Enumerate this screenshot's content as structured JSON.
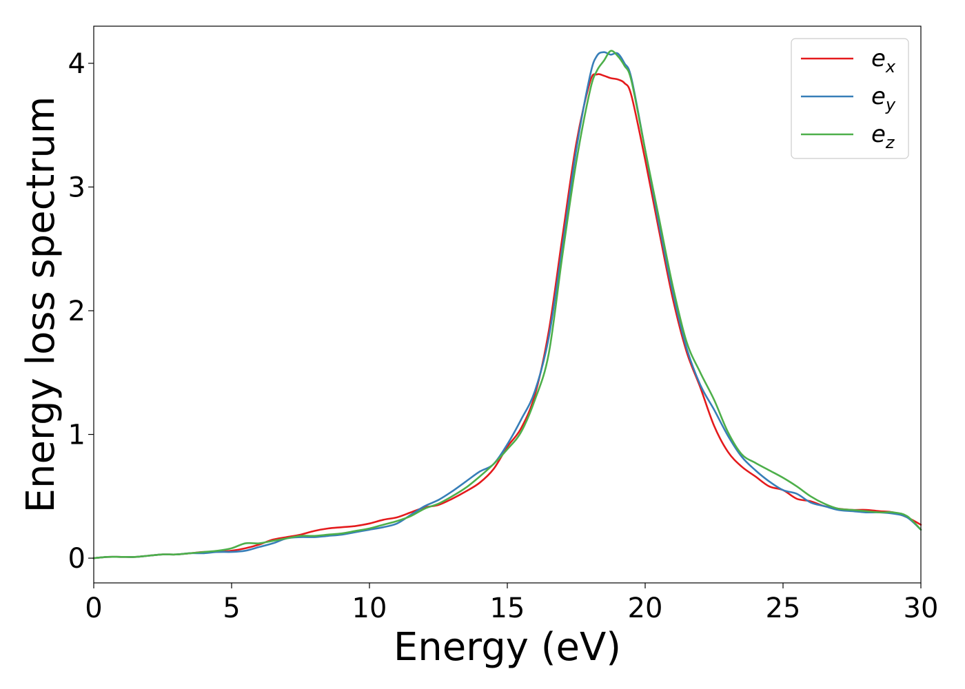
{
  "chart_data": {
    "type": "line",
    "title": "",
    "xlabel": "Energy (eV)",
    "ylabel": "Energy loss spectrum",
    "xlim": [
      0,
      30
    ],
    "ylim": [
      -0.2,
      4.3
    ],
    "xticks": [
      0,
      5,
      10,
      15,
      20,
      25,
      30
    ],
    "yticks": [
      0,
      1,
      2,
      3,
      4
    ],
    "grid": false,
    "legend_position": "top-right",
    "series": [
      {
        "name": "e_x",
        "legend_main": "e",
        "legend_sub": "x",
        "color": "#e41a1c",
        "x": [
          0,
          0.5,
          1,
          1.5,
          2,
          2.5,
          3,
          3.5,
          4,
          4.5,
          5,
          5.5,
          6,
          6.5,
          7,
          7.5,
          8,
          8.5,
          9,
          9.5,
          10,
          10.5,
          11,
          11.5,
          12,
          12.5,
          13,
          13.5,
          14,
          14.5,
          15,
          15.5,
          16,
          16.5,
          17,
          17.5,
          18,
          18.25,
          18.5,
          18.75,
          19,
          19.25,
          19.5,
          20,
          20.5,
          21,
          21.5,
          22,
          22.5,
          23,
          23.5,
          24,
          24.5,
          25,
          25.5,
          26,
          26.5,
          27,
          27.5,
          28,
          28.5,
          29,
          29.5,
          30
        ],
        "y": [
          0.0,
          0.01,
          0.01,
          0.01,
          0.02,
          0.03,
          0.03,
          0.04,
          0.05,
          0.05,
          0.06,
          0.08,
          0.11,
          0.15,
          0.17,
          0.19,
          0.22,
          0.24,
          0.25,
          0.26,
          0.28,
          0.31,
          0.33,
          0.37,
          0.41,
          0.43,
          0.48,
          0.54,
          0.61,
          0.72,
          0.9,
          1.05,
          1.32,
          1.83,
          2.6,
          3.35,
          3.85,
          3.91,
          3.9,
          3.88,
          3.87,
          3.84,
          3.74,
          3.22,
          2.65,
          2.1,
          1.67,
          1.38,
          1.07,
          0.86,
          0.74,
          0.66,
          0.58,
          0.55,
          0.48,
          0.46,
          0.42,
          0.4,
          0.39,
          0.39,
          0.38,
          0.37,
          0.33,
          0.27
        ]
      },
      {
        "name": "e_y",
        "legend_main": "e",
        "legend_sub": "y",
        "color": "#377eb8",
        "x": [
          0,
          0.5,
          1,
          1.5,
          2,
          2.5,
          3,
          3.5,
          4,
          4.5,
          5,
          5.5,
          6,
          6.5,
          7,
          7.5,
          8,
          8.5,
          9,
          9.5,
          10,
          10.5,
          11,
          11.5,
          12,
          12.5,
          13,
          13.5,
          14,
          14.5,
          15,
          15.5,
          16,
          16.5,
          17,
          17.5,
          18,
          18.25,
          18.5,
          18.75,
          19,
          19.25,
          19.5,
          20,
          20.5,
          21,
          21.5,
          22,
          22.5,
          23,
          23.5,
          24,
          24.5,
          25,
          25.5,
          26,
          26.5,
          27,
          27.5,
          28,
          28.5,
          29,
          29.5,
          30
        ],
        "y": [
          0.0,
          0.01,
          0.01,
          0.01,
          0.02,
          0.03,
          0.03,
          0.04,
          0.04,
          0.05,
          0.05,
          0.06,
          0.09,
          0.12,
          0.16,
          0.17,
          0.17,
          0.18,
          0.19,
          0.21,
          0.23,
          0.25,
          0.28,
          0.35,
          0.42,
          0.47,
          0.54,
          0.62,
          0.7,
          0.76,
          0.92,
          1.12,
          1.35,
          1.78,
          2.52,
          3.3,
          3.9,
          4.06,
          4.09,
          4.07,
          4.08,
          4.0,
          3.88,
          3.3,
          2.7,
          2.15,
          1.7,
          1.4,
          1.2,
          0.99,
          0.82,
          0.71,
          0.62,
          0.55,
          0.52,
          0.45,
          0.42,
          0.39,
          0.38,
          0.37,
          0.37,
          0.36,
          0.33,
          0.23
        ]
      },
      {
        "name": "e_z",
        "legend_main": "e",
        "legend_sub": "z",
        "color": "#4daf4a",
        "x": [
          0,
          0.5,
          1,
          1.5,
          2,
          2.5,
          3,
          3.5,
          4,
          4.5,
          5,
          5.5,
          6,
          6.5,
          7,
          7.5,
          8,
          8.5,
          9,
          9.5,
          10,
          10.5,
          11,
          11.5,
          12,
          12.5,
          13,
          13.5,
          14,
          14.5,
          15,
          15.5,
          16,
          16.5,
          17,
          17.5,
          18,
          18.25,
          18.5,
          18.75,
          19,
          19.25,
          19.5,
          20,
          20.5,
          21,
          21.5,
          22,
          22.5,
          23,
          23.5,
          24,
          24.5,
          25,
          25.5,
          26,
          26.5,
          27,
          27.5,
          28,
          28.5,
          29,
          29.5,
          30
        ],
        "y": [
          0.0,
          0.01,
          0.01,
          0.01,
          0.02,
          0.03,
          0.03,
          0.04,
          0.05,
          0.06,
          0.08,
          0.12,
          0.12,
          0.14,
          0.16,
          0.18,
          0.18,
          0.19,
          0.2,
          0.22,
          0.24,
          0.27,
          0.3,
          0.34,
          0.4,
          0.44,
          0.5,
          0.57,
          0.66,
          0.76,
          0.88,
          1.02,
          1.28,
          1.65,
          2.45,
          3.2,
          3.78,
          3.94,
          4.02,
          4.1,
          4.06,
          3.98,
          3.86,
          3.3,
          2.75,
          2.2,
          1.75,
          1.5,
          1.28,
          1.02,
          0.84,
          0.77,
          0.71,
          0.65,
          0.58,
          0.5,
          0.44,
          0.4,
          0.39,
          0.38,
          0.37,
          0.37,
          0.34,
          0.23
        ]
      }
    ]
  }
}
